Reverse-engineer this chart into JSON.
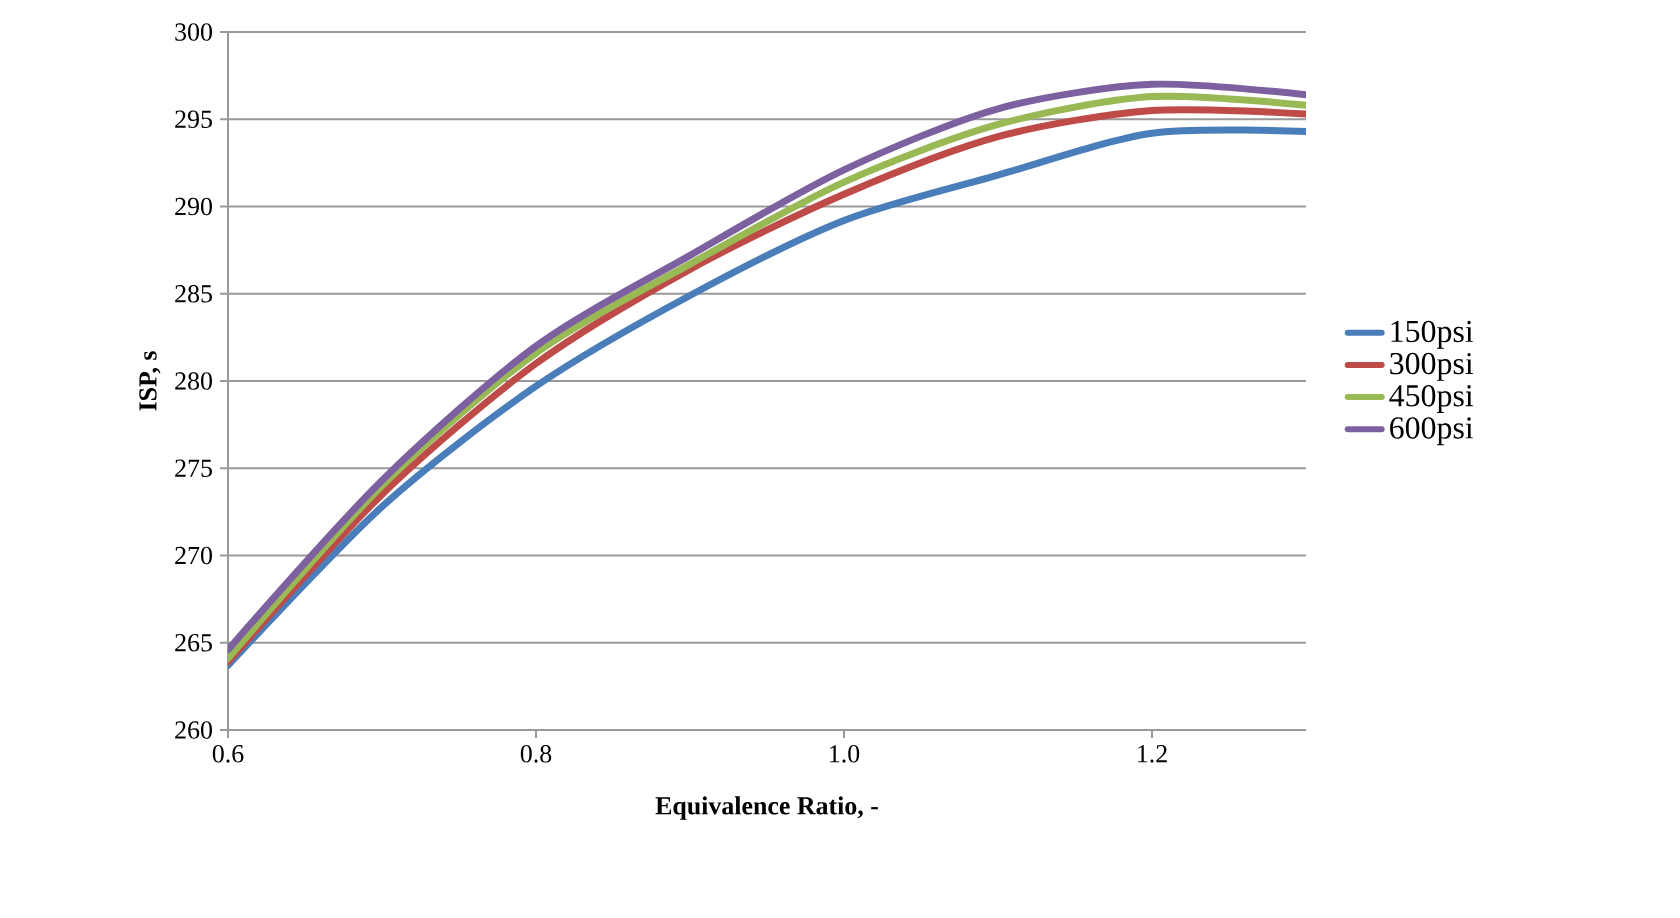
{
  "chart_data": {
    "type": "line",
    "xlabel": "Equivalence Ratio, -",
    "ylabel": "ISP, s",
    "x": [
      0.6,
      0.7,
      0.8,
      0.9,
      1.0,
      1.1,
      1.2,
      1.3
    ],
    "series": [
      {
        "name": "150psi",
        "color": "#4a7ebb",
        "values": [
          263.7,
          272.8,
          279.7,
          284.9,
          289.2,
          291.8,
          294.2,
          294.3
        ]
      },
      {
        "name": "300psi",
        "color": "#be4b48",
        "values": [
          263.9,
          273.5,
          281.0,
          286.4,
          290.7,
          294.0,
          295.5,
          295.3
        ]
      },
      {
        "name": "450psi",
        "color": "#98b954",
        "values": [
          264.1,
          274.0,
          281.6,
          286.7,
          291.4,
          294.7,
          296.3,
          295.8
        ]
      },
      {
        "name": "600psi",
        "color": "#7d60a0",
        "values": [
          264.6,
          274.3,
          282.0,
          287.2,
          292.1,
          295.6,
          297.0,
          296.4
        ]
      }
    ],
    "xlim": [
      0.6,
      1.3
    ],
    "ylim": [
      260,
      300
    ],
    "xticks": [
      0.6,
      0.8,
      {
        "value": 1.0,
        "label": "1.0"
      },
      1.2
    ],
    "yticks": [
      260,
      265,
      270,
      275,
      280,
      285,
      290,
      295,
      300
    ],
    "grid": "y",
    "legend": "right",
    "marker": "none",
    "line_style": "solid"
  }
}
